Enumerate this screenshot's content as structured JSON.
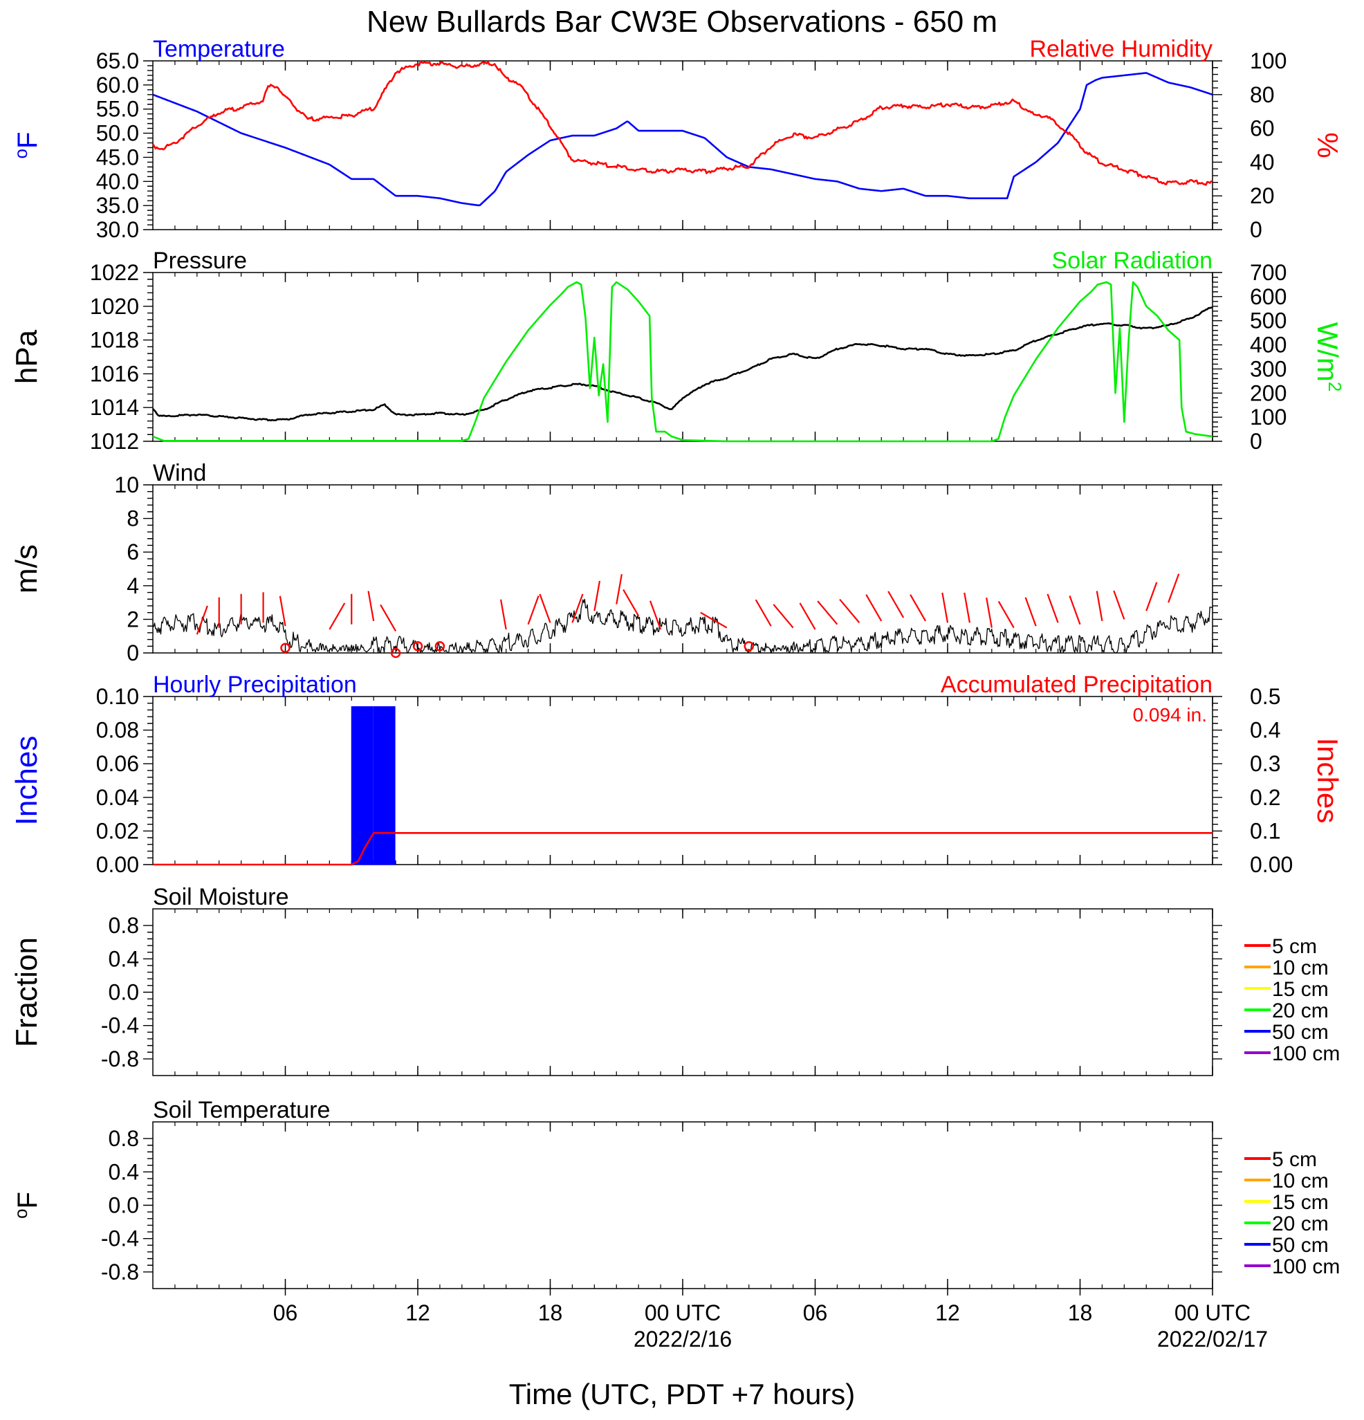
{
  "title": "New Bullards Bar CW3E Observations - 650 m",
  "xlabel": "Time (UTC, PDT +7 hours)",
  "x_axis": {
    "units": "hours since 2022-02-15 00 UTC",
    "range": [
      0,
      48
    ],
    "ticks": [
      {
        "x": 6,
        "label": "06",
        "sub": ""
      },
      {
        "x": 12,
        "label": "12",
        "sub": ""
      },
      {
        "x": 18,
        "label": "18",
        "sub": ""
      },
      {
        "x": 24,
        "label": "00 UTC",
        "sub": "2022/2/16"
      },
      {
        "x": 30,
        "label": "06",
        "sub": ""
      },
      {
        "x": 36,
        "label": "12",
        "sub": ""
      },
      {
        "x": 42,
        "label": "18",
        "sub": ""
      },
      {
        "x": 48,
        "label": "00 UTC",
        "sub": "2022/02/17"
      }
    ]
  },
  "colors": {
    "temperature": "#0000ff",
    "humidity": "#ff0000",
    "pressure": "#000000",
    "solar": "#00ee00",
    "wind": "#000000",
    "barb": "#ff0000",
    "hourly_precip": "#0000ff",
    "accum_precip": "#ff0000"
  },
  "chart_data": [
    {
      "type": "line",
      "panel": "temperature-humidity",
      "left_title": "Temperature",
      "right_title": "Relative Humidity",
      "left_ylabel": "°F",
      "right_ylabel": "%",
      "left_ylim": [
        30,
        65
      ],
      "right_ylim": [
        0,
        100
      ],
      "left_ticks": [
        "30.0",
        "35.0",
        "40.0",
        "45.0",
        "50.0",
        "55.0",
        "60.0",
        "65.0"
      ],
      "right_ticks": [
        "0",
        "20",
        "40",
        "60",
        "80",
        "100"
      ],
      "series": [
        {
          "name": "Temperature",
          "axis": "left",
          "x": [
            0,
            2,
            4,
            6,
            8,
            9,
            10,
            11,
            12,
            13,
            14,
            14.8,
            15.5,
            16,
            17,
            18,
            19,
            20,
            21,
            21.5,
            22,
            23,
            24,
            25,
            26,
            27,
            28,
            29,
            30,
            31,
            32,
            33,
            34,
            35,
            36,
            37,
            38,
            38.7,
            39,
            40,
            41,
            41.5,
            42,
            42.3,
            42.7,
            43,
            44,
            45,
            46,
            47,
            48
          ],
          "y": [
            58,
            54.5,
            50,
            47,
            43.5,
            40.5,
            40.5,
            37,
            37,
            36.5,
            35.5,
            35,
            38,
            42,
            45.5,
            48.5,
            49.5,
            49.5,
            51,
            52.5,
            50.5,
            50.5,
            50.5,
            49,
            45,
            43,
            42.5,
            41.5,
            40.5,
            40,
            38.5,
            38,
            38.5,
            37,
            37,
            36.5,
            36.5,
            36.5,
            41,
            44,
            48,
            51.5,
            55,
            60,
            61,
            61.5,
            62,
            62.5,
            60.5,
            59.5,
            58
          ]
        },
        {
          "name": "Relative Humidity",
          "axis": "right",
          "x": [
            0,
            0.5,
            1,
            2,
            3,
            4,
            5,
            5.2,
            5.6,
            6,
            7,
            8,
            9,
            9.5,
            10,
            11,
            12,
            13,
            14,
            14.5,
            15,
            15.5,
            16,
            16.5,
            17,
            18,
            19,
            20,
            21,
            22,
            23,
            24,
            25,
            26,
            27,
            28,
            29,
            30,
            31,
            32,
            33,
            34,
            35,
            36,
            37,
            38,
            39,
            40,
            40.5,
            41,
            41.5,
            42,
            42.5,
            43,
            44,
            45,
            46,
            47,
            48
          ],
          "y": [
            50,
            49,
            52,
            62,
            70,
            73,
            77,
            85,
            86,
            79,
            66,
            67,
            68,
            71,
            72,
            94,
            99,
            99,
            97,
            98,
            99,
            99,
            90,
            88,
            80,
            62,
            42,
            40,
            38,
            36,
            35,
            36,
            35,
            37,
            38,
            50,
            57,
            55,
            60,
            65,
            73,
            74,
            73,
            75,
            73,
            74,
            77,
            68,
            68,
            62,
            58,
            50,
            44,
            40,
            36,
            32,
            28,
            29,
            28
          ]
        }
      ]
    },
    {
      "type": "line",
      "panel": "pressure-solar",
      "left_title": "Pressure",
      "right_title": "Solar Radiation",
      "left_ylabel": "hPa",
      "right_ylabel": "W/m",
      "right_ylabel_sup": "2",
      "left_ylim": [
        1012,
        1022
      ],
      "right_ylim": [
        0,
        700
      ],
      "left_ticks": [
        "1012",
        "1014",
        "1016",
        "1018",
        "1020",
        "1022"
      ],
      "right_ticks": [
        "0",
        "100",
        "200",
        "300",
        "400",
        "500",
        "600",
        "700"
      ],
      "series": [
        {
          "name": "Pressure",
          "axis": "left",
          "x": [
            0,
            0.3,
            2,
            4,
            5,
            6,
            7,
            8,
            9,
            10,
            10.5,
            11,
            12,
            13,
            14,
            15,
            16,
            17,
            18,
            19,
            19.5,
            20,
            21,
            22,
            23,
            23.5,
            24,
            25,
            26,
            27,
            28,
            29,
            30,
            31,
            32,
            33,
            34,
            35,
            36,
            37,
            38,
            39,
            40,
            41,
            42,
            43,
            44,
            45,
            46,
            47,
            48
          ],
          "y": [
            1014.0,
            1013.5,
            1013.6,
            1013.4,
            1013.3,
            1013.3,
            1013.6,
            1013.7,
            1013.8,
            1013.9,
            1014.2,
            1013.6,
            1013.6,
            1013.7,
            1013.6,
            1013.9,
            1014.5,
            1015.0,
            1015.2,
            1015.4,
            1015.4,
            1015.3,
            1014.9,
            1014.6,
            1014.2,
            1013.9,
            1014.6,
            1015.4,
            1015.8,
            1016.3,
            1016.9,
            1017.2,
            1016.9,
            1017.5,
            1017.8,
            1017.7,
            1017.5,
            1017.5,
            1017.2,
            1017.1,
            1017.2,
            1017.4,
            1018.0,
            1018.4,
            1018.8,
            1019.0,
            1018.9,
            1018.7,
            1018.9,
            1019.3,
            1020.0
          ]
        },
        {
          "name": "Solar Radiation",
          "axis": "right",
          "x": [
            0,
            0.5,
            14,
            14.3,
            14.6,
            15,
            16,
            17,
            18,
            18.5,
            18.8,
            19.2,
            19.4,
            19.6,
            19.8,
            20.0,
            20.2,
            20.4,
            20.6,
            20.8,
            21.0,
            21.5,
            22,
            22.5,
            22.6,
            22.8,
            23.2,
            23.5,
            24,
            26,
            27,
            38,
            38.3,
            38.6,
            39,
            40,
            41,
            42,
            42.5,
            42.8,
            43.2,
            43.4,
            43.6,
            43.8,
            44.0,
            44.2,
            44.4,
            44.6,
            44.8,
            45.0,
            45.5,
            46,
            46.5,
            46.6,
            46.8,
            47.2,
            48
          ],
          "y": [
            20,
            2,
            2,
            10,
            80,
            180,
            330,
            460,
            565,
            610,
            640,
            660,
            650,
            510,
            220,
            430,
            190,
            320,
            80,
            640,
            660,
            630,
            580,
            520,
            180,
            40,
            40,
            20,
            5,
            0,
            0,
            0,
            10,
            100,
            190,
            340,
            470,
            580,
            620,
            650,
            660,
            650,
            200,
            470,
            80,
            420,
            660,
            640,
            600,
            560,
            520,
            460,
            420,
            140,
            40,
            30,
            20
          ]
        }
      ]
    },
    {
      "type": "line",
      "panel": "wind",
      "left_title": "Wind",
      "left_ylabel": "m/s",
      "left_ylim": [
        0,
        10
      ],
      "left_ticks": [
        "0",
        "2",
        "4",
        "6",
        "8",
        "10"
      ],
      "series": [
        {
          "name": "Wind",
          "axis": "left",
          "x": [
            0,
            1,
            2,
            3,
            4,
            5,
            5.8,
            6,
            7,
            8,
            9,
            10,
            11,
            12,
            13,
            14,
            15,
            16,
            17,
            18,
            19,
            19.5,
            20,
            21,
            22,
            23,
            24,
            25,
            25.5,
            26,
            27,
            28,
            29,
            30,
            31,
            32,
            33,
            34,
            35,
            36,
            37,
            38,
            39,
            40,
            41,
            42,
            43,
            44,
            45,
            46,
            47,
            48
          ],
          "y": [
            1.8,
            2.0,
            2.1,
            1.6,
            2.2,
            2.0,
            2.0,
            1.2,
            0.6,
            0.3,
            0.2,
            0.7,
            0.8,
            0.5,
            0.4,
            0.4,
            0.6,
            0.9,
            1.1,
            1.6,
            2.2,
            3.0,
            2.4,
            2.3,
            2.0,
            1.8,
            1.8,
            2.0,
            1.9,
            0.9,
            0.5,
            0.3,
            0.4,
            0.6,
            0.8,
            0.9,
            1.0,
            1.2,
            1.3,
            1.4,
            1.3,
            1.2,
            1.1,
            0.9,
            0.8,
            0.8,
            0.8,
            0.7,
            1.4,
            2.0,
            2.0,
            2.6
          ]
        },
        {
          "name": "Wind barbs",
          "type": "barb",
          "x": [
            2,
            3,
            4,
            5,
            6,
            8,
            9,
            10,
            11,
            16,
            17,
            18,
            19,
            20,
            21,
            22,
            23,
            26,
            28,
            29,
            30,
            31,
            32,
            33,
            34,
            35,
            36,
            37,
            38,
            39,
            40,
            41,
            42,
            43,
            44,
            45,
            46
          ],
          "y": [
            1.1,
            1.5,
            1.7,
            1.8,
            1.6,
            1.4,
            1.7,
            1.9,
            1.3,
            1.4,
            1.7,
            1.8,
            1.8,
            2.5,
            2.9,
            2.2,
            1.4,
            1.5,
            1.6,
            1.5,
            1.4,
            1.7,
            1.8,
            1.9,
            2.1,
            1.9,
            1.8,
            1.8,
            1.5,
            1.5,
            1.6,
            1.8,
            1.7,
            1.9,
            2.0,
            2.5,
            3.0
          ],
          "dir_deg": [
            20,
            0,
            0,
            0,
            350,
            30,
            0,
            350,
            330,
            350,
            20,
            340,
            20,
            10,
            10,
            330,
            340,
            300,
            330,
            320,
            330,
            320,
            320,
            330,
            330,
            330,
            350,
            350,
            350,
            330,
            340,
            340,
            340,
            350,
            340,
            20,
            20
          ],
          "calm_x": [
            6,
            11,
            12,
            13,
            27
          ],
          "calm_y": [
            0.3,
            0.0,
            0.4,
            0.4,
            0.4
          ]
        }
      ]
    },
    {
      "type": "bar",
      "panel": "precipitation",
      "left_title": "Hourly Precipitation",
      "right_title": "Accumulated Precipitation",
      "annotation": "0.094 in.",
      "left_ylabel": "Inches",
      "right_ylabel": "Inches",
      "left_ylim": [
        0,
        0.1
      ],
      "right_ylim": [
        0,
        0.5
      ],
      "left_ticks": [
        "0.00",
        "0.02",
        "0.04",
        "0.06",
        "0.08",
        "0.10"
      ],
      "right_ticks": [
        "0.00",
        "0.1",
        "0.2",
        "0.3",
        "0.4",
        "0.5"
      ],
      "series": [
        {
          "name": "Hourly Precipitation",
          "axis": "left",
          "type": "bar",
          "x_start": [
            9,
            10
          ],
          "x_end": [
            10,
            11
          ],
          "values": [
            0.094,
            0.094
          ]
        },
        {
          "name": "Accumulated Precipitation",
          "axis": "right",
          "type": "line",
          "x": [
            0,
            9,
            9.3,
            9.6,
            10,
            48
          ],
          "y": [
            0,
            0,
            0.01,
            0.05,
            0.094,
            0.094
          ]
        }
      ]
    },
    {
      "type": "line",
      "panel": "soil-moisture",
      "left_title": "Soil Moisture",
      "left_ylabel": "Fraction",
      "left_ylim": [
        -1,
        1
      ],
      "left_ticks": [
        "-0.8",
        "-0.4",
        "0.0",
        "0.4",
        "0.8"
      ],
      "legend": [
        "5 cm",
        "10 cm",
        "15 cm",
        "20 cm",
        "50 cm",
        "100 cm"
      ],
      "legend_colors": [
        "#ff0000",
        "#ffa500",
        "#ffff00",
        "#00ff00",
        "#0000ff",
        "#9400d3"
      ]
    },
    {
      "type": "line",
      "panel": "soil-temperature",
      "left_title": "Soil Temperature",
      "left_ylabel": "°F",
      "left_ylim": [
        -1,
        1
      ],
      "left_ticks": [
        "-0.8",
        "-0.4",
        "0.0",
        "0.4",
        "0.8"
      ],
      "legend": [
        "5 cm",
        "10 cm",
        "15 cm",
        "20 cm",
        "50 cm",
        "100 cm"
      ],
      "legend_colors": [
        "#ff0000",
        "#ffa500",
        "#ffff00",
        "#00ff00",
        "#0000ff",
        "#9400d3"
      ]
    }
  ]
}
